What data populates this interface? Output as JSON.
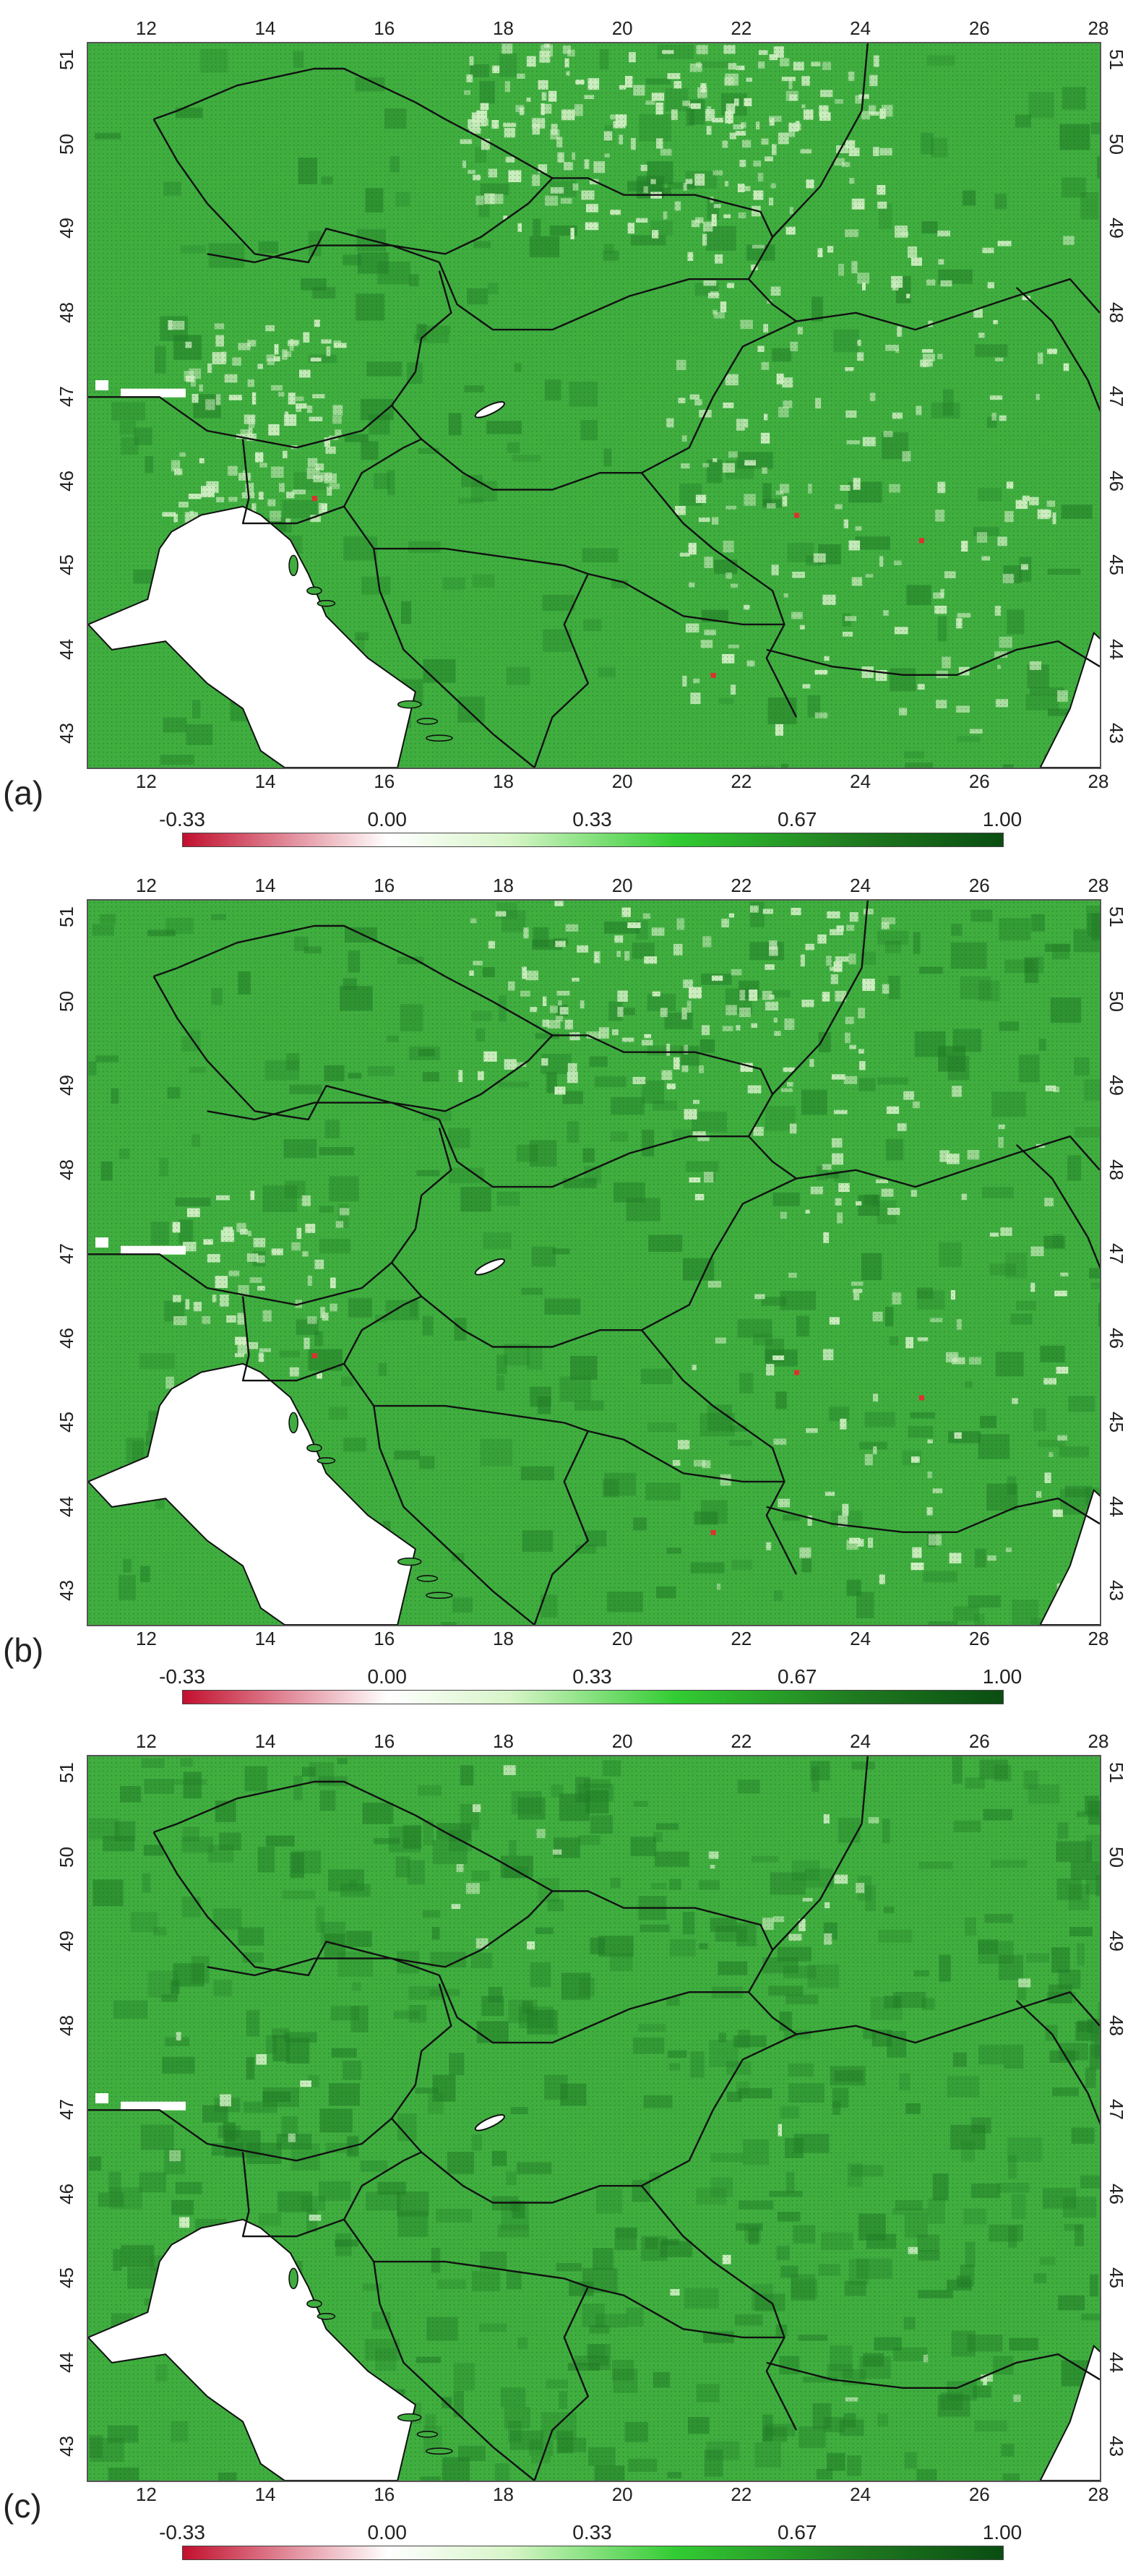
{
  "panels": [
    {
      "label": "(a)",
      "style": "a"
    },
    {
      "label": "(b)",
      "style": "b"
    },
    {
      "label": "(c)",
      "style": "c"
    }
  ],
  "longitude_ticks": [
    "12",
    "14",
    "16",
    "18",
    "20",
    "22",
    "24",
    "26",
    "28"
  ],
  "latitude_ticks": [
    "43",
    "44",
    "45",
    "46",
    "47",
    "48",
    "49",
    "50",
    "51"
  ],
  "colorbar": {
    "tick_labels": [
      "-0.33",
      "0.00",
      "0.33",
      "0.67",
      "1.00"
    ],
    "colors": [
      "#c2102e",
      "#ffffff",
      "#d7f5c8",
      "#33cc33",
      "#1f7a1f",
      "#0a4d12"
    ]
  },
  "colors": {
    "land_fill": "#3fae3f",
    "border_line": "#111111",
    "sea": "#ffffff",
    "pale_patch": "#cdeec0",
    "dark_patch": "#227d27",
    "negative_dot": "#e0302f"
  }
}
